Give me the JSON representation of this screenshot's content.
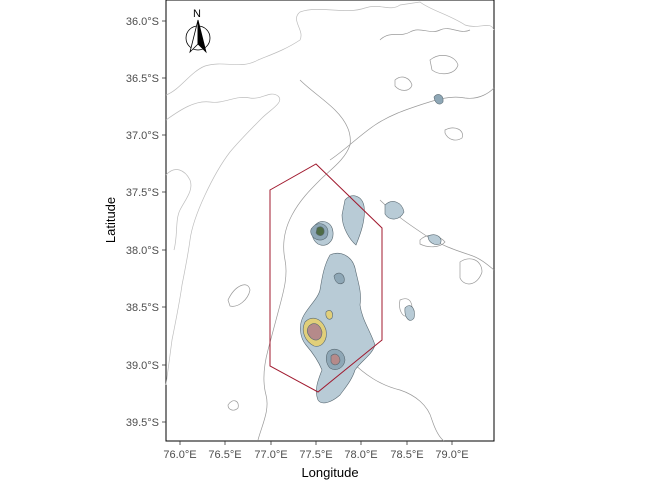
{
  "axes": {
    "x_title": "Longitude",
    "y_title": "Latitude",
    "x_ticks": [
      "76.0°E",
      "76.5°E",
      "77.0°E",
      "77.5°E",
      "78.0°E",
      "78.5°E",
      "79.0°E"
    ],
    "y_ticks": [
      "36.0°S",
      "36.5°S",
      "37.0°S",
      "37.5°S",
      "38.0°S",
      "38.5°S",
      "39.0°S",
      "39.5°S"
    ]
  },
  "north_arrow": {
    "label": "N"
  },
  "colors": {
    "panel_border": "#000000",
    "bathymetry_contour": "#9a9a9a",
    "shallow_fill": "#b8cbd6",
    "mid_fill": "#8ea7b6",
    "deep_peak_fill": "#4e6b45",
    "sand_fill": "#e1cf7a",
    "rose_fill": "#b58a8a",
    "area_outline": "#a0192e"
  }
}
